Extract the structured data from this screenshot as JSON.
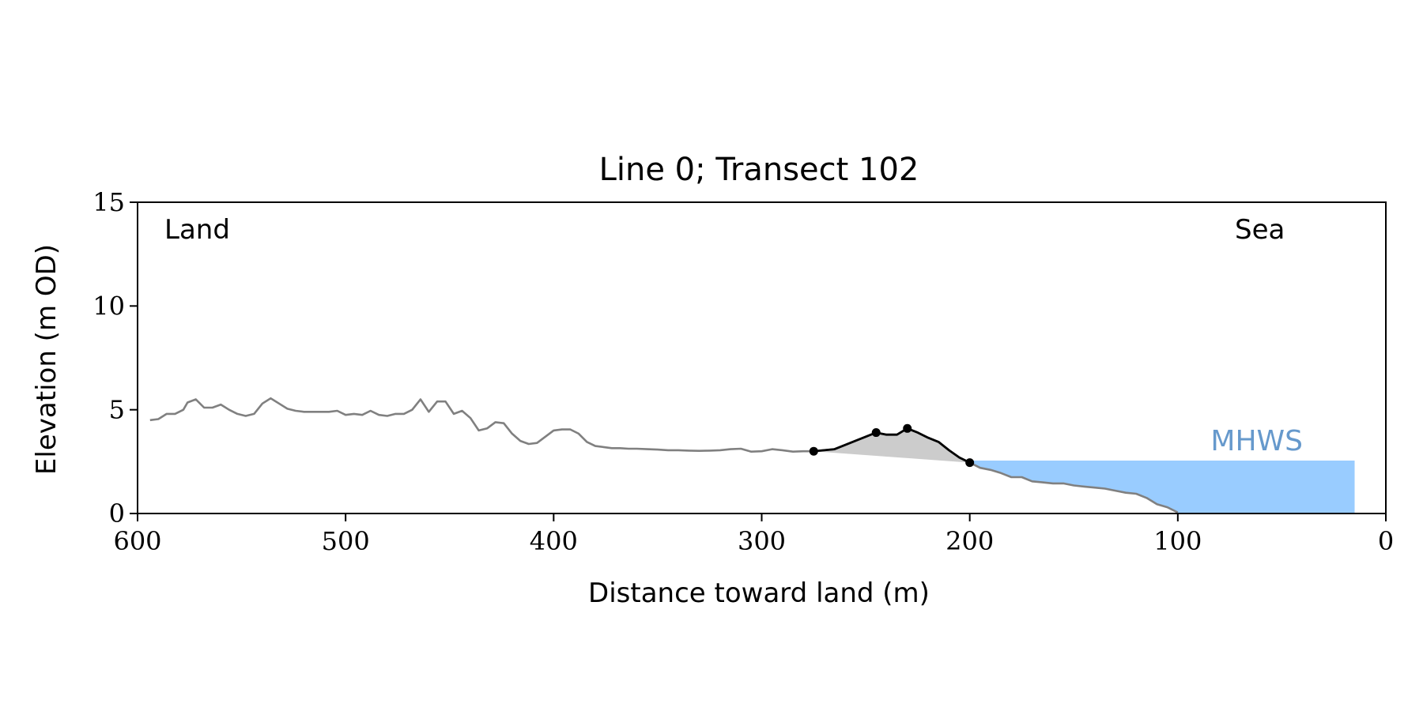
{
  "chart_data": {
    "type": "line",
    "title": "Line 0; Transect 102",
    "xlabel": "Distance toward land (m)",
    "ylabel": "Elevation (m OD)",
    "xlim": [
      600,
      0
    ],
    "ylim": [
      0,
      15
    ],
    "x_ticks": [
      "600",
      "500",
      "400",
      "300",
      "200",
      "100",
      "0"
    ],
    "y_ticks": [
      "0",
      "5",
      "10",
      "15"
    ],
    "grid": false,
    "annotations": {
      "land": "Land",
      "sea": "Sea",
      "mhws": "MHWS"
    },
    "mhws_level": 2.55,
    "mhws_extent": [
      15,
      200
    ],
    "colors": {
      "profile": "#808080",
      "dune": "#000000",
      "dune_fill": "#cccccc",
      "sea": "#99ccff",
      "mhws_text": "#6699cc"
    },
    "profile": {
      "x": [
        594,
        590,
        586,
        582,
        578,
        576,
        572,
        568,
        564,
        560,
        556,
        552,
        548,
        544,
        540,
        536,
        532,
        528,
        524,
        520,
        516,
        512,
        508,
        504,
        500,
        496,
        492,
        488,
        484,
        480,
        476,
        472,
        468,
        464,
        460,
        456,
        452,
        448,
        444,
        440,
        436,
        432,
        428,
        424,
        420,
        416,
        412,
        408,
        404,
        400,
        396,
        392,
        388,
        384,
        380,
        376,
        372,
        368,
        364,
        360,
        355,
        350,
        345,
        340,
        335,
        330,
        325,
        320,
        315,
        310,
        305,
        300,
        295,
        290,
        285,
        280,
        275,
        270,
        265,
        260,
        255,
        250,
        245,
        240,
        235,
        230,
        225,
        220,
        215,
        210,
        205,
        200,
        195,
        190,
        185,
        180,
        175,
        170,
        165,
        160,
        155,
        150,
        145,
        140,
        135,
        130,
        125,
        120,
        115,
        110,
        105,
        100
      ],
      "y": [
        4.5,
        4.55,
        4.8,
        4.8,
        5.0,
        5.35,
        5.5,
        5.1,
        5.1,
        5.25,
        5.0,
        4.8,
        4.7,
        4.8,
        5.3,
        5.55,
        5.3,
        5.05,
        4.95,
        4.9,
        4.9,
        4.9,
        4.9,
        4.95,
        4.75,
        4.8,
        4.75,
        4.95,
        4.75,
        4.7,
        4.8,
        4.8,
        5.0,
        5.5,
        4.9,
        5.4,
        5.4,
        4.8,
        4.95,
        4.6,
        4.0,
        4.1,
        4.4,
        4.35,
        3.85,
        3.5,
        3.35,
        3.4,
        3.7,
        4.0,
        4.05,
        4.05,
        3.85,
        3.45,
        3.25,
        3.2,
        3.15,
        3.15,
        3.12,
        3.12,
        3.1,
        3.08,
        3.05,
        3.05,
        3.03,
        3.02,
        3.03,
        3.05,
        3.1,
        3.12,
        2.98,
        3.0,
        3.1,
        3.05,
        2.98,
        3.0,
        3.0,
        3.05,
        3.1,
        3.3,
        3.5,
        3.7,
        3.9,
        3.8,
        3.8,
        4.1,
        3.9,
        3.65,
        3.45,
        3.05,
        2.7,
        2.45,
        2.2,
        2.1,
        1.95,
        1.75,
        1.75,
        1.55,
        1.5,
        1.45,
        1.45,
        1.35,
        1.3,
        1.25,
        1.2,
        1.1,
        1.0,
        0.95,
        0.75,
        0.45,
        0.3,
        0.05
      ]
    },
    "dune": {
      "x": [
        275,
        270,
        265,
        260,
        255,
        250,
        245,
        240,
        235,
        230,
        225,
        220,
        215,
        210,
        205,
        200
      ],
      "y": [
        3.0,
        3.05,
        3.1,
        3.3,
        3.5,
        3.7,
        3.9,
        3.8,
        3.8,
        4.1,
        3.9,
        3.65,
        3.45,
        3.05,
        2.7,
        2.45
      ]
    },
    "dune_points": [
      {
        "x": 275,
        "y": 3.0
      },
      {
        "x": 245,
        "y": 3.9
      },
      {
        "x": 230,
        "y": 4.1
      },
      {
        "x": 200,
        "y": 2.45
      }
    ]
  }
}
